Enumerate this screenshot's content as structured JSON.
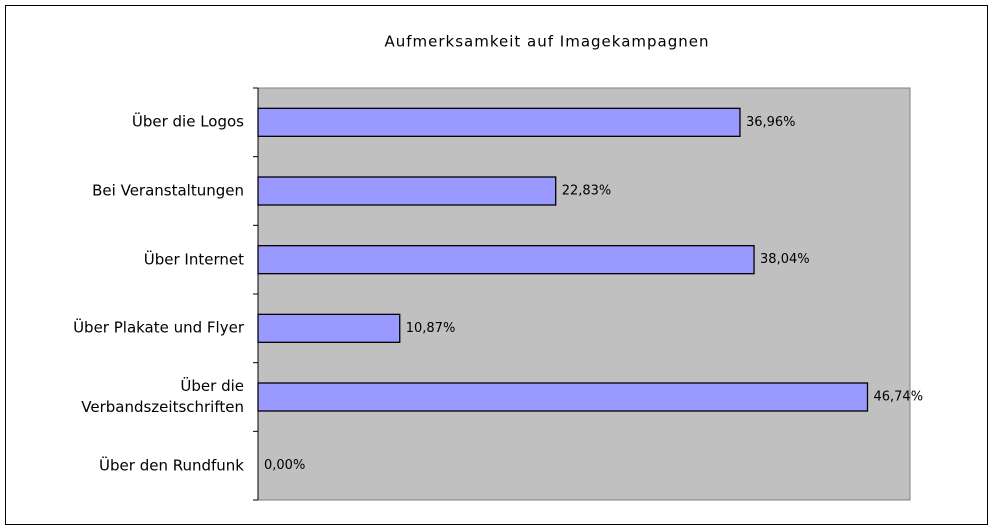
{
  "chart_data": {
    "type": "bar",
    "orientation": "horizontal",
    "title": "Aufmerksamkeit auf Imagekampagnen",
    "categories": [
      "Über die Logos",
      "Bei Veranstaltungen",
      "Über Internet",
      "Über Plakate und Flyer",
      "Über die Verbandszeitschriften",
      "Über den Rundfunk"
    ],
    "values": [
      36.96,
      22.83,
      38.04,
      10.87,
      46.74,
      0
    ],
    "value_labels": [
      "36,96%",
      "22,83%",
      "38,04%",
      "10,87%",
      "46,74%",
      "0,00%"
    ],
    "color": "#9999ff",
    "xlim": [
      0,
      50
    ]
  }
}
